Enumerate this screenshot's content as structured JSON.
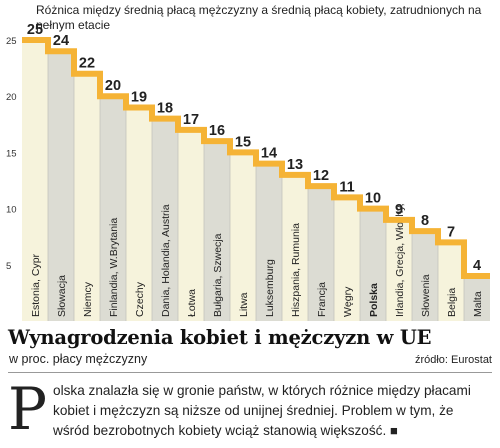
{
  "chart_data": {
    "type": "bar",
    "title": "Wynagrodzenia kobiet i mężczyzn w UE",
    "subtitle": "Różnica między średnią płacą mężczyzny a średnią płacą kobiety, zatrudnionych na pełnym etacie",
    "unit_label": "w proc. płacy mężczyzny",
    "source": "źródło: Eurostat",
    "categories": [
      "Estonia, Cypr",
      "Słowacja",
      "Niemcy",
      "Finlandia, W.Brytania",
      "Czechy",
      "Dania, Holandia, Austria",
      "Łotwa",
      "Bułgaria, Szwecja",
      "Litwa",
      "Luksemburg",
      "Hiszpania, Rumunia",
      "Francja",
      "Węgry",
      "Polska",
      "Irlandia, Grecja, Włochy,",
      "Słowenia",
      "Belgia",
      "Malta"
    ],
    "values": [
      25,
      24,
      22,
      20,
      19,
      18,
      17,
      16,
      15,
      14,
      13,
      12,
      11,
      10,
      9,
      8,
      7,
      4
    ],
    "highlight_category": "Polska",
    "ylim": [
      0,
      25
    ],
    "yticks": [
      5,
      10,
      15,
      20,
      25
    ],
    "grid": false,
    "colors": {
      "step_line": "#f5b335",
      "bar_light": "#f6f3dc",
      "bar_dark": "#dcdcd3",
      "divider": "#c4c4bc",
      "value_text": "#222222"
    }
  },
  "article": {
    "dropcap": "P",
    "text": "olska znalazła się w gronie państw, w których różnice między płacami kobiet i mężczyzn są  niższe od unijnej średniej. Problem w tym, że wśród bezrobotnych kobiety wciąż stanowią większość.",
    "end_mark": "■"
  }
}
